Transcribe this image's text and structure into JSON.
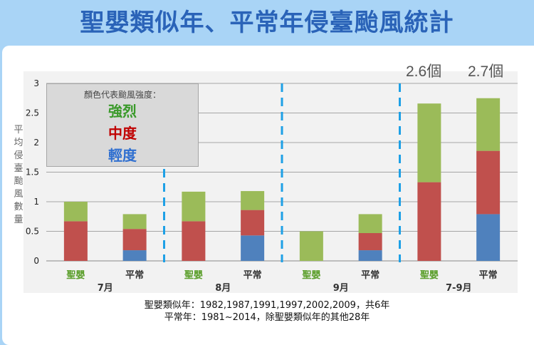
{
  "title": "聖嬰類似年、平常年侵臺颱風統計",
  "totals": [
    "2.6個",
    "2.7個"
  ],
  "legend": {
    "heading": "顏色代表颱風強度：",
    "items": [
      "強烈",
      "中度",
      "輕度"
    ]
  },
  "colors": {
    "strong": "#9bbb59",
    "medium": "#c0504d",
    "light": "#4f81bd",
    "elnino_label": "#5a9e2a",
    "title": "#2a63b8",
    "divider": "#1ea0e6"
  },
  "notes": [
    "聖嬰類似年：1982,1987,1991,1997,2002,2009，共6年",
    "平常年：1981~2014，除聖嬰類似年的其他28年"
  ],
  "chart_data": {
    "type": "bar",
    "stacked": true,
    "ylabel": "平均侵臺颱風數量",
    "ylim": [
      0,
      3
    ],
    "yticks": [
      "0",
      "0.5",
      "1",
      "1.5",
      "2",
      "2.5",
      "3"
    ],
    "grid": true,
    "groups": [
      "7月",
      "8月",
      "9月",
      "7-9月"
    ],
    "categories": [
      "聖嬰",
      "平常",
      "聖嬰",
      "平常",
      "聖嬰",
      "平常",
      "聖嬰",
      "平常"
    ],
    "series": [
      {
        "name": "輕度",
        "values": [
          0,
          0.18,
          0,
          0.43,
          0,
          0.18,
          0,
          0.79
        ]
      },
      {
        "name": "中度",
        "values": [
          0.67,
          0.36,
          0.67,
          0.43,
          0,
          0.29,
          1.33,
          1.07
        ]
      },
      {
        "name": "強烈",
        "values": [
          0.33,
          0.25,
          0.5,
          0.32,
          0.5,
          0.32,
          1.33,
          0.89
        ]
      }
    ]
  }
}
